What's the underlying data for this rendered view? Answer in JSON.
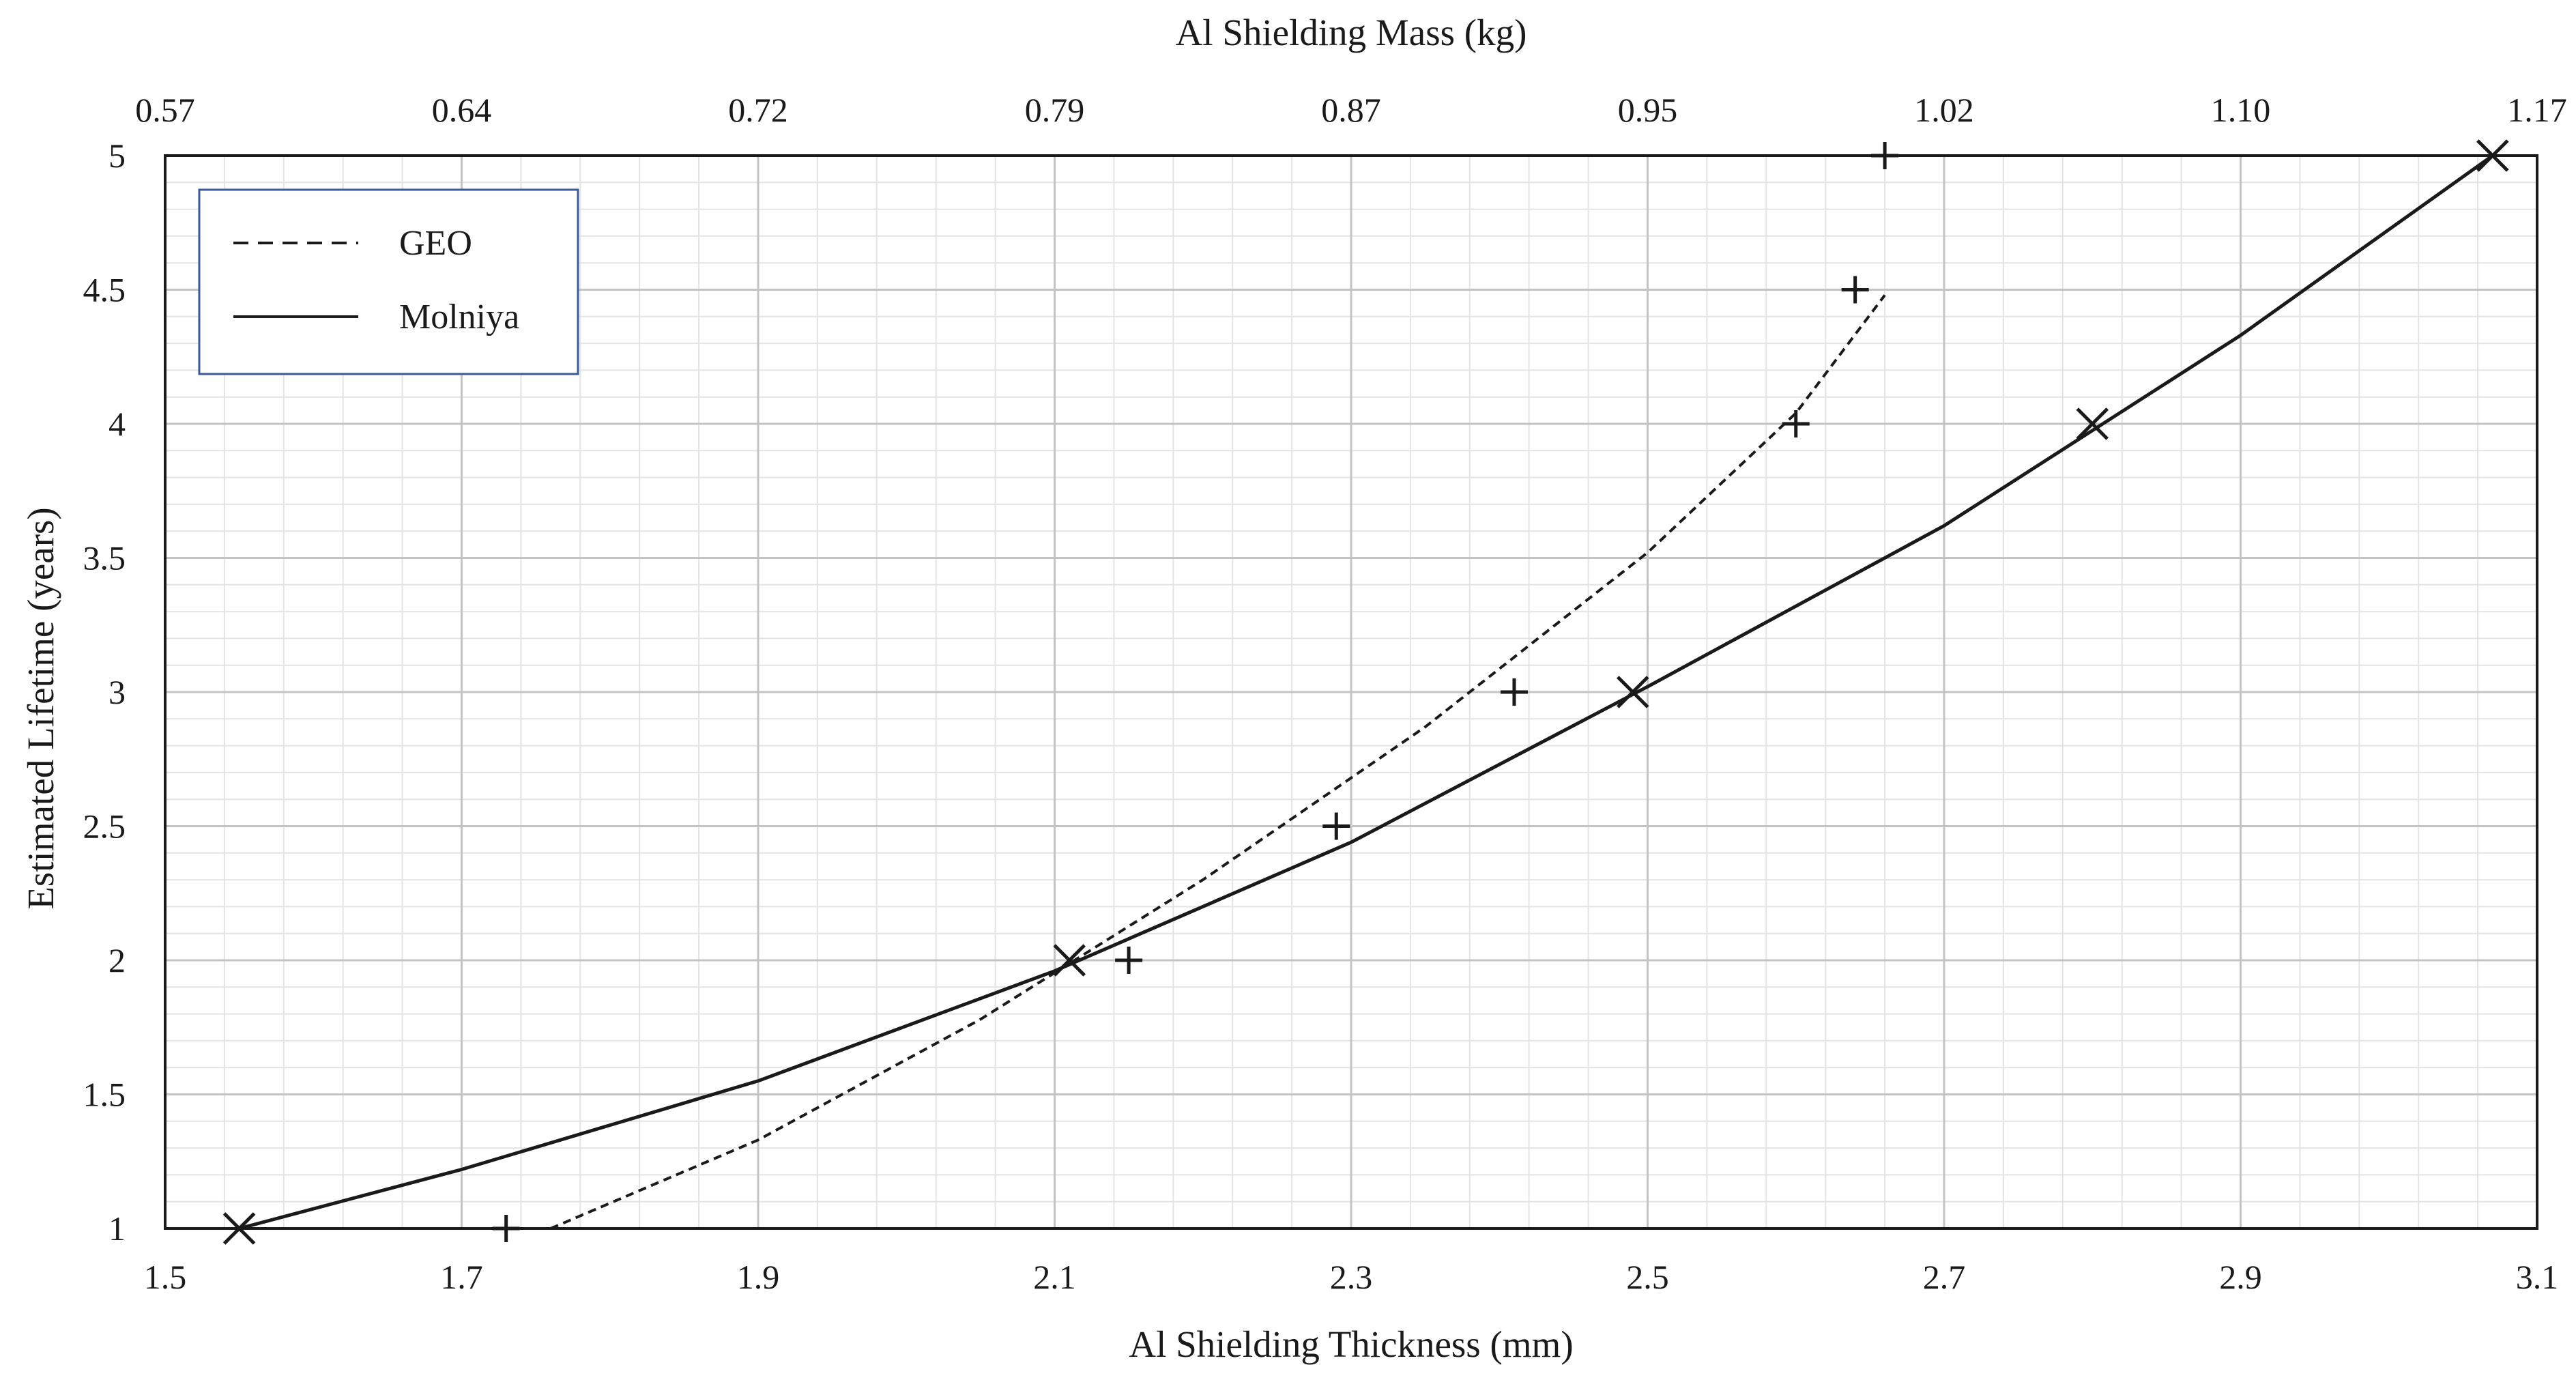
{
  "chart_data": {
    "type": "line",
    "title": "",
    "xlabel": "Al Shielding Thickness (mm)",
    "ylabel": "Estimated Lifetime (years)",
    "x2label": "Al Shielding Mass (kg)",
    "xlim": [
      1.5,
      3.1
    ],
    "ylim": [
      1,
      5
    ],
    "x_ticks": [
      "1.5",
      "1.7",
      "1.9",
      "2.1",
      "2.3",
      "2.5",
      "2.7",
      "2.9",
      "3.1"
    ],
    "y_ticks": [
      "1",
      "1.5",
      "2",
      "2.5",
      "3",
      "3.5",
      "4",
      "4.5",
      "5"
    ],
    "x2_ticks": [
      "0.57",
      "0.64",
      "0.72",
      "0.79",
      "0.87",
      "0.95",
      "1.02",
      "1.10",
      "1.17"
    ],
    "grid": true,
    "legend_position": "top-left",
    "series": [
      {
        "name": "GEO",
        "line_style": "dashed",
        "marker": "plus",
        "color": "#1a1a1a",
        "points": [
          {
            "x": 1.73,
            "y": 1.0
          },
          {
            "x": 2.15,
            "y": 2.0
          },
          {
            "x": 2.29,
            "y": 2.5
          },
          {
            "x": 2.41,
            "y": 3.0
          },
          {
            "x": 2.6,
            "y": 4.0
          },
          {
            "x": 2.64,
            "y": 4.5
          },
          {
            "x": 2.66,
            "y": 5.0
          }
        ],
        "trend": [
          {
            "x": 1.76,
            "y": 1.0
          },
          {
            "x": 1.9,
            "y": 1.33
          },
          {
            "x": 2.05,
            "y": 1.78
          },
          {
            "x": 2.2,
            "y": 2.3
          },
          {
            "x": 2.35,
            "y": 2.87
          },
          {
            "x": 2.5,
            "y": 3.52
          },
          {
            "x": 2.6,
            "y": 4.04
          },
          {
            "x": 2.66,
            "y": 4.48
          }
        ]
      },
      {
        "name": "Molniya",
        "line_style": "solid",
        "marker": "x",
        "color": "#1a1a1a",
        "points": [
          {
            "x": 1.55,
            "y": 1.0
          },
          {
            "x": 2.11,
            "y": 2.0
          },
          {
            "x": 2.49,
            "y": 3.0
          },
          {
            "x": 2.8,
            "y": 4.0
          },
          {
            "x": 3.07,
            "y": 5.0
          }
        ],
        "trend": [
          {
            "x": 1.55,
            "y": 1.0
          },
          {
            "x": 1.7,
            "y": 1.22
          },
          {
            "x": 1.9,
            "y": 1.55
          },
          {
            "x": 2.1,
            "y": 1.96
          },
          {
            "x": 2.3,
            "y": 2.44
          },
          {
            "x": 2.5,
            "y": 3.02
          },
          {
            "x": 2.7,
            "y": 3.62
          },
          {
            "x": 2.9,
            "y": 4.33
          },
          {
            "x": 3.07,
            "y": 5.0
          }
        ]
      }
    ]
  }
}
